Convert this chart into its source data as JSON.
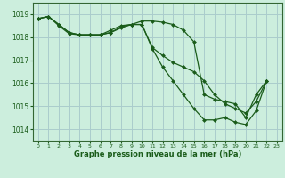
{
  "background_color": "#cceedd",
  "grid_color": "#aacccc",
  "line_color": "#1a5c1a",
  "marker_color": "#1a5c1a",
  "xlabel": "Graphe pression niveau de la mer (hPa)",
  "xlim": [
    -0.5,
    23.5
  ],
  "ylim": [
    1013.5,
    1019.5
  ],
  "yticks": [
    1014,
    1015,
    1016,
    1017,
    1018,
    1019
  ],
  "xticks": [
    0,
    1,
    2,
    3,
    4,
    5,
    6,
    7,
    8,
    9,
    10,
    11,
    12,
    13,
    14,
    15,
    16,
    17,
    18,
    19,
    20,
    21,
    22,
    23
  ],
  "series1_x": [
    0,
    1,
    2,
    3,
    4,
    5,
    6,
    7,
    8,
    9,
    10,
    11,
    12,
    13,
    14,
    15,
    16,
    17,
    18,
    19,
    20,
    21,
    22
  ],
  "series1_y": [
    1018.8,
    1018.9,
    1018.55,
    1018.2,
    1018.1,
    1018.1,
    1018.1,
    1018.2,
    1018.4,
    1018.55,
    1018.55,
    1017.5,
    1016.7,
    1016.1,
    1015.5,
    1014.9,
    1014.4,
    1014.4,
    1014.5,
    1014.3,
    1014.2,
    1014.8,
    1016.1
  ],
  "series2_x": [
    0,
    1,
    2,
    3,
    4,
    5,
    6,
    7,
    8,
    9,
    10,
    11,
    12,
    13,
    14,
    15,
    16,
    17,
    18,
    19,
    20,
    21,
    22
  ],
  "series2_y": [
    1018.8,
    1018.9,
    1018.5,
    1018.15,
    1018.1,
    1018.1,
    1018.1,
    1018.3,
    1018.5,
    1018.55,
    1018.55,
    1017.55,
    1017.2,
    1016.9,
    1016.7,
    1016.5,
    1016.1,
    1015.5,
    1015.1,
    1014.9,
    1014.7,
    1015.2,
    1016.1
  ],
  "series3_x": [
    0,
    1,
    2,
    3,
    4,
    5,
    6,
    7,
    8,
    9,
    10,
    11,
    12,
    13,
    14,
    15,
    16,
    17,
    18,
    19,
    20,
    21,
    22
  ],
  "series3_y": [
    1018.8,
    1018.9,
    1018.55,
    1018.2,
    1018.1,
    1018.1,
    1018.1,
    1018.2,
    1018.45,
    1018.55,
    1018.7,
    1018.7,
    1018.65,
    1018.55,
    1018.3,
    1017.8,
    1015.5,
    1015.3,
    1015.2,
    1015.1,
    1014.5,
    1015.5,
    1016.1
  ]
}
